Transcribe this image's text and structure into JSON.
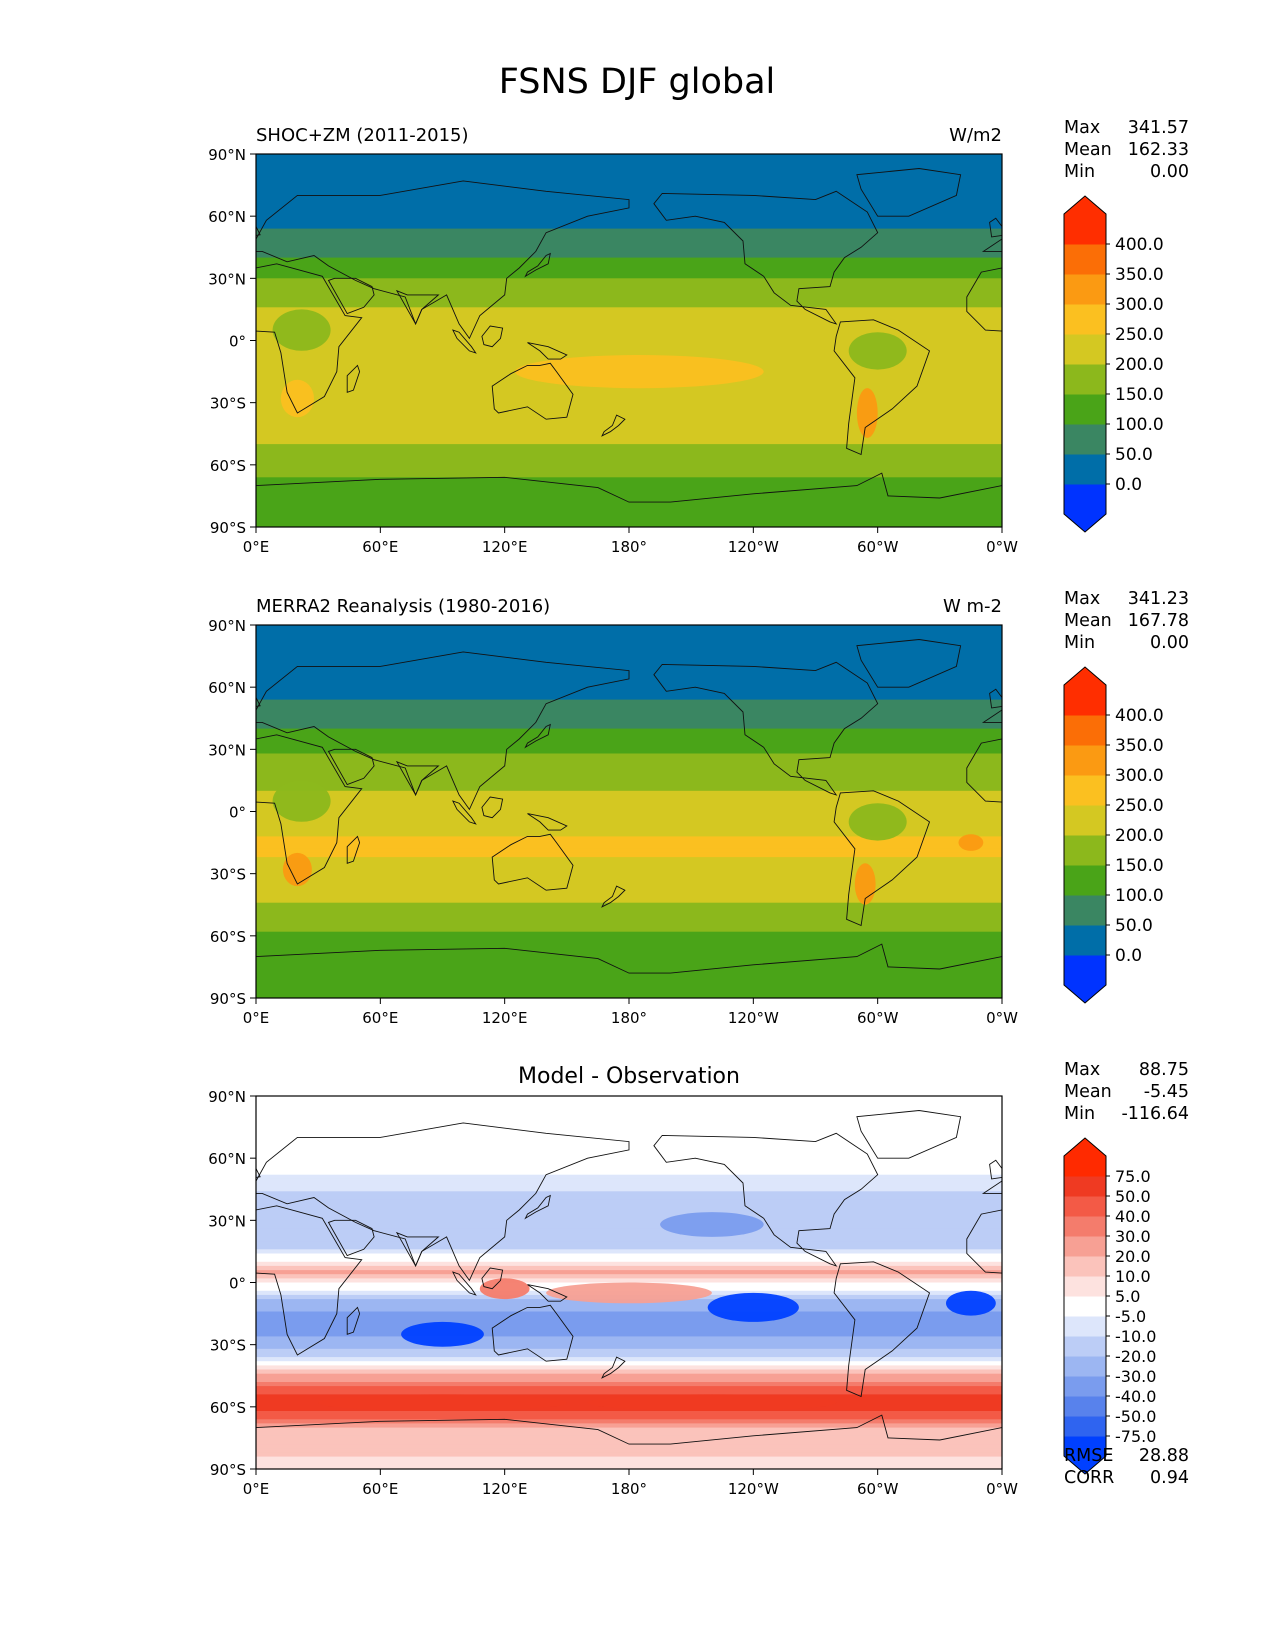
{
  "title": "FSNS DJF global",
  "lat_ticks": [
    "90°N",
    "60°N",
    "30°N",
    "0°",
    "30°S",
    "60°S",
    "90°S"
  ],
  "lon_ticks": [
    "0°E",
    "60°E",
    "120°E",
    "180°",
    "120°W",
    "60°W",
    "0°W"
  ],
  "panels": [
    {
      "left_title": "SHOC+ZM (2011-2015)",
      "right_title": "W/m2",
      "center_title": "",
      "stats": {
        "max_label": "Max",
        "max": "341.57",
        "mean_label": "Mean",
        "mean": "162.33",
        "min_label": "Min",
        "min": "0.00"
      },
      "colorbar_ticks": [
        "400.0",
        "350.0",
        "300.0",
        "250.0",
        "200.0",
        "150.0",
        "100.0",
        "50.0",
        "0.0"
      ]
    },
    {
      "left_title": "MERRA2 Reanalysis (1980-2016)",
      "right_title": "W m-2",
      "center_title": "",
      "stats": {
        "max_label": "Max",
        "max": "341.23",
        "mean_label": "Mean",
        "mean": "167.78",
        "min_label": "Min",
        "min": "0.00"
      },
      "colorbar_ticks": [
        "400.0",
        "350.0",
        "300.0",
        "250.0",
        "200.0",
        "150.0",
        "100.0",
        "50.0",
        "0.0"
      ]
    },
    {
      "left_title": "",
      "right_title": "",
      "center_title": "Model - Observation",
      "stats": {
        "max_label": "Max",
        "max": "88.75",
        "mean_label": "Mean",
        "mean": "-5.45",
        "min_label": "Min",
        "min": "-116.64"
      },
      "colorbar_ticks": [
        "75.0",
        "50.0",
        "40.0",
        "30.0",
        "20.0",
        "10.0",
        "5.0",
        "-5.0",
        "-10.0",
        "-20.0",
        "-30.0",
        "-40.0",
        "-50.0",
        "-75.0"
      ],
      "metrics": {
        "rmse_label": "RMSE",
        "rmse": "28.88",
        "corr_label": "CORR",
        "corr": "0.94"
      }
    }
  ],
  "colors": {
    "field_levels": [
      "#0033ff",
      "#006ea8",
      "#3a8662",
      "#4aa418",
      "#8cb81c",
      "#d4c822",
      "#fbc020",
      "#fb9a12",
      "#fb6e06",
      "#ff2e00"
    ],
    "diff_levels": [
      "#0040ff",
      "#2f64f0",
      "#5882ec",
      "#7a9cee",
      "#9cb6f2",
      "#bccdf6",
      "#dde6fb",
      "#ffffff",
      "#fde2df",
      "#fbc3bb",
      "#f7a094",
      "#f47c6c",
      "#f35a46",
      "#ef3a22",
      "#ff2a00"
    ]
  },
  "chart_data": [
    {
      "type": "heatmap",
      "title": "SHOC+ZM (2011-2015)",
      "units": "W/m2",
      "season": "DJF",
      "x_range": [
        0,
        360
      ],
      "y_range": [
        -90,
        90
      ],
      "color_levels": [
        0,
        50,
        100,
        150,
        200,
        250,
        300,
        350,
        400
      ],
      "rows": [
        {
          "lat": 90,
          "value": 0
        },
        {
          "lat": 75,
          "value": 25
        },
        {
          "lat": 60,
          "value": 30
        },
        {
          "lat": 45,
          "value": 80
        },
        {
          "lat": 30,
          "value": 150
        },
        {
          "lat": 15,
          "value": 200
        },
        {
          "lat": 0,
          "value": 220
        },
        {
          "lat": -15,
          "value": 240
        },
        {
          "lat": -30,
          "value": 245
        },
        {
          "lat": -45,
          "value": 210
        },
        {
          "lat": -60,
          "value": 175
        },
        {
          "lat": -75,
          "value": 120
        },
        {
          "lat": -90,
          "value": 110
        }
      ],
      "stats": {
        "max": 341.57,
        "mean": 162.33,
        "min": 0.0
      }
    },
    {
      "type": "heatmap",
      "title": "MERRA2 Reanalysis (1980-2016)",
      "units": "W m-2",
      "season": "DJF",
      "x_range": [
        0,
        360
      ],
      "y_range": [
        -90,
        90
      ],
      "color_levels": [
        0,
        50,
        100,
        150,
        200,
        250,
        300,
        350,
        400
      ],
      "rows": [
        {
          "lat": 90,
          "value": 0
        },
        {
          "lat": 75,
          "value": 25
        },
        {
          "lat": 60,
          "value": 30
        },
        {
          "lat": 45,
          "value": 85
        },
        {
          "lat": 30,
          "value": 140
        },
        {
          "lat": 15,
          "value": 190
        },
        {
          "lat": 0,
          "value": 225
        },
        {
          "lat": -15,
          "value": 255
        },
        {
          "lat": -30,
          "value": 245
        },
        {
          "lat": -45,
          "value": 195
        },
        {
          "lat": -60,
          "value": 140
        },
        {
          "lat": -75,
          "value": 120
        },
        {
          "lat": -90,
          "value": 110
        }
      ],
      "stats": {
        "max": 341.23,
        "mean": 167.78,
        "min": 0.0
      }
    },
    {
      "type": "heatmap",
      "title": "Model - Observation",
      "season": "DJF",
      "x_range": [
        0,
        360
      ],
      "y_range": [
        -90,
        90
      ],
      "color_levels": [
        -75,
        -50,
        -40,
        -30,
        -20,
        -10,
        -5,
        5,
        10,
        20,
        30,
        40,
        50,
        75
      ],
      "rows": [
        {
          "lat": 90,
          "value": 0
        },
        {
          "lat": 60,
          "value": 0
        },
        {
          "lat": 45,
          "value": -10
        },
        {
          "lat": 30,
          "value": -20
        },
        {
          "lat": 15,
          "value": -10
        },
        {
          "lat": 5,
          "value": 20
        },
        {
          "lat": -10,
          "value": -25
        },
        {
          "lat": -20,
          "value": -40
        },
        {
          "lat": -35,
          "value": -15
        },
        {
          "lat": -50,
          "value": 40
        },
        {
          "lat": -60,
          "value": 60
        },
        {
          "lat": -70,
          "value": 20
        },
        {
          "lat": -90,
          "value": 5
        }
      ],
      "stats": {
        "max": 88.75,
        "mean": -5.45,
        "min": -116.64
      },
      "metrics": {
        "rmse": 28.88,
        "corr": 0.94
      }
    }
  ]
}
